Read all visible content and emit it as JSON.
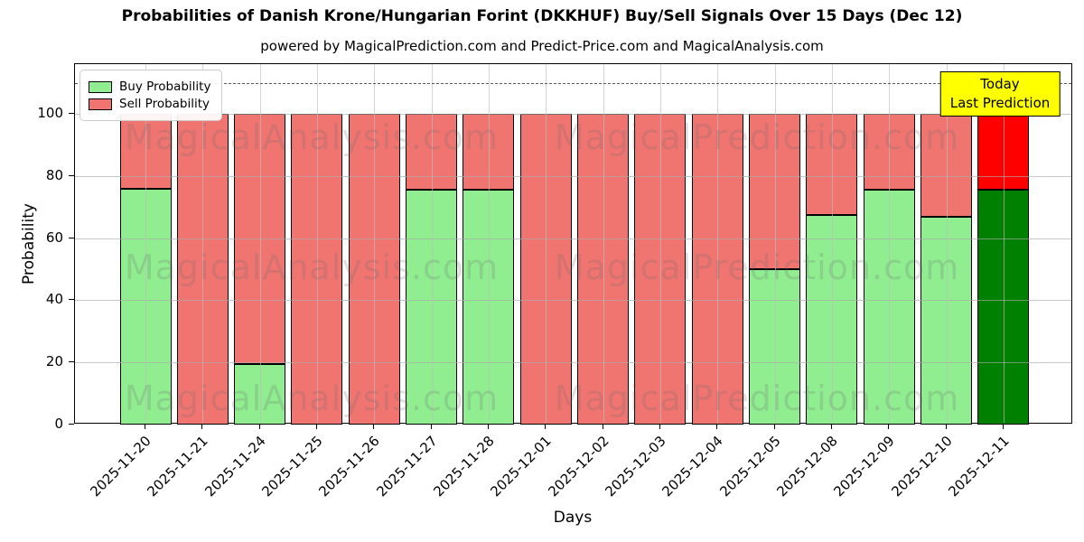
{
  "header": {
    "title": "Probabilities of Danish Krone/Hungarian Forint (DKKHUF) Buy/Sell Signals Over 15 Days (Dec 12)",
    "subtitle": "powered by MagicalPrediction.com and Predict-Price.com and MagicalAnalysis.com"
  },
  "legend": {
    "items": [
      {
        "label": "Buy Probability",
        "color": "#90ee90"
      },
      {
        "label": "Sell Probability",
        "color": "#f07470"
      }
    ]
  },
  "annotation": {
    "line1": "Today",
    "line2": "Last Prediction",
    "bg_color": "#ffff00"
  },
  "watermarks": {
    "texts": [
      "MagicalAnalysis.com",
      "MagicalPrediction.com"
    ],
    "x_centers": [
      345,
      838
    ],
    "row_y_centers": [
      152,
      296,
      441
    ]
  },
  "chart_data": {
    "type": "bar",
    "stacked": true,
    "title": "Probabilities of Danish Krone/Hungarian Forint (DKKHUF) Buy/Sell Signals Over 15 Days (Dec 12)",
    "xlabel": "Days",
    "ylabel": "Probability",
    "categories": [
      "2025-11-20",
      "2025-11-21",
      "2025-11-24",
      "2025-11-25",
      "2025-11-26",
      "2025-11-27",
      "2025-11-28",
      "2025-12-01",
      "2025-12-02",
      "2025-12-03",
      "2025-12-04",
      "2025-12-05",
      "2025-12-08",
      "2025-12-09",
      "2025-12-10",
      "2025-12-11"
    ],
    "series": [
      {
        "name": "Buy Probability",
        "color": "#90ee90",
        "today_color": "#008000",
        "values": [
          76,
          0,
          19.5,
          0,
          0,
          75.5,
          75.5,
          0,
          0,
          0,
          0,
          50,
          67.5,
          75.5,
          67,
          75.5
        ]
      },
      {
        "name": "Sell Probability",
        "color": "#f07470",
        "today_color": "#ff0000",
        "values": [
          24,
          100,
          80.5,
          100,
          100,
          24.5,
          24.5,
          100,
          100,
          100,
          100,
          50,
          32.5,
          24.5,
          33,
          24.5
        ]
      }
    ],
    "today_index": 15,
    "yticks": [
      0,
      20,
      40,
      60,
      80,
      100
    ],
    "ylim": [
      0,
      116
    ],
    "dashed_line_y": 110,
    "grid": true,
    "legend_position": "upper left",
    "annotation_on_last_bar": "Today / Last Prediction"
  }
}
